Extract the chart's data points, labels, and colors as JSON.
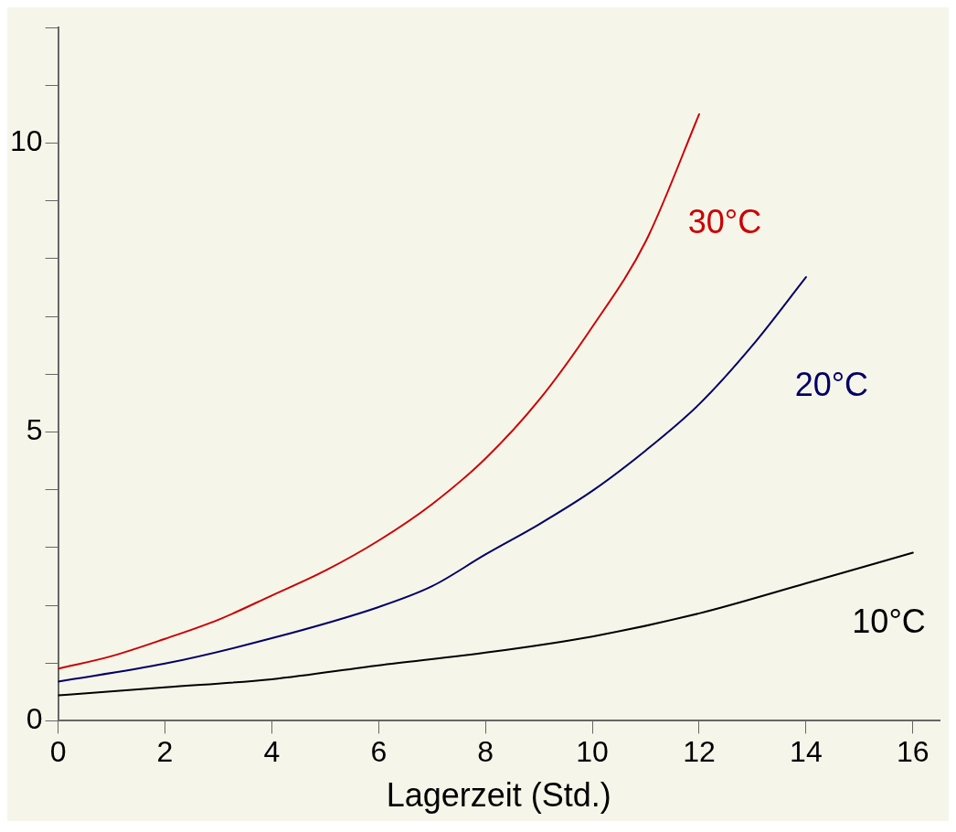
{
  "chart_data": {
    "type": "line",
    "xlabel": "Lagerzeit (Std.)",
    "xlim": [
      0,
      16.5
    ],
    "xticks": [
      0,
      2,
      4,
      6,
      8,
      10,
      12,
      14,
      16
    ],
    "ylim": [
      0,
      12
    ],
    "yticks": [
      0,
      {
        "value": 1,
        "label": null
      },
      {
        "value": 2,
        "label": null
      },
      {
        "value": 3,
        "label": null
      },
      {
        "value": 4,
        "label": null
      },
      5,
      {
        "value": 6,
        "label": null
      },
      {
        "value": 7,
        "label": null
      },
      {
        "value": 8,
        "label": null
      },
      {
        "value": 9,
        "label": null
      },
      10,
      {
        "value": 11,
        "label": null
      },
      {
        "value": 12,
        "label": null
      }
    ],
    "grid": false,
    "legend": false,
    "marker": "none",
    "line_style": "solid",
    "series": [
      {
        "name": "30°C",
        "color": "#cc0000",
        "x": [
          0,
          1,
          2,
          3,
          4,
          5,
          6,
          7,
          8,
          9,
          10,
          11,
          12
        ],
        "values": [
          0.9,
          1.12,
          1.42,
          1.75,
          2.17,
          2.6,
          3.12,
          3.75,
          4.54,
          5.55,
          6.82,
          8.3,
          10.5
        ]
      },
      {
        "name": "20°C",
        "color": "#000066",
        "x": [
          0,
          2,
          4,
          6,
          7,
          8,
          9,
          10,
          11,
          12,
          13,
          14
        ],
        "values": [
          0.68,
          0.99,
          1.43,
          1.97,
          2.33,
          2.88,
          3.4,
          3.98,
          4.68,
          5.48,
          6.5,
          7.68
        ]
      },
      {
        "name": "10°C",
        "color": "#000000",
        "x": [
          0,
          2,
          4,
          6,
          8,
          10,
          12,
          14,
          16
        ],
        "values": [
          0.44,
          0.58,
          0.72,
          0.96,
          1.18,
          1.46,
          1.86,
          2.38,
          2.91
        ]
      }
    ]
  }
}
